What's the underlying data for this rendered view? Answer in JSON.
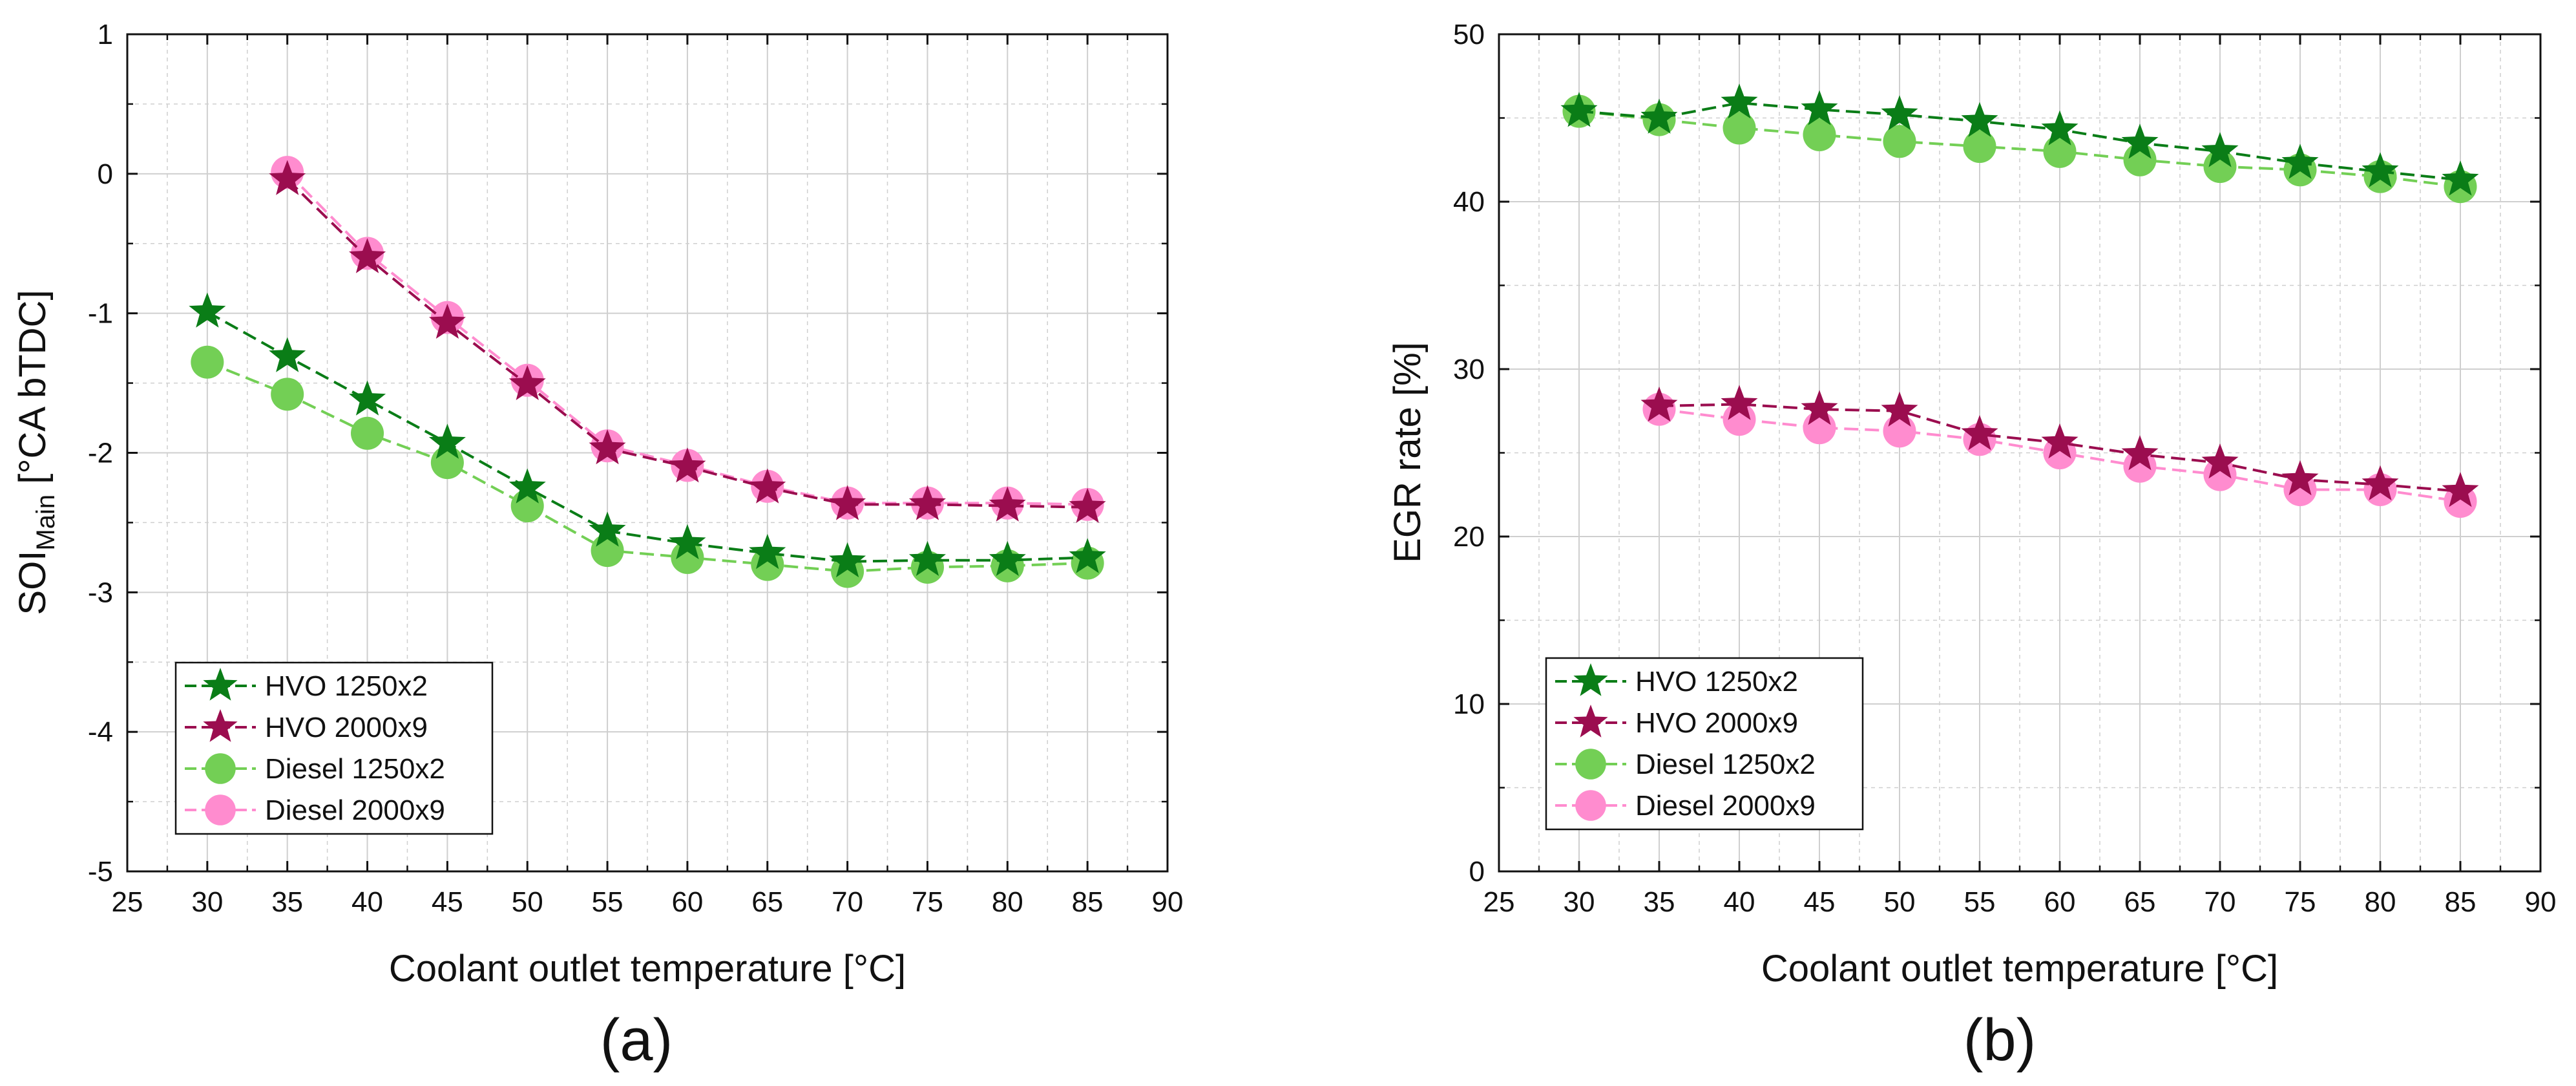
{
  "colors": {
    "hvo_1250x2": "#0a7d17",
    "hvo_2000x9": "#9b0d4f",
    "diesel_1250x2": "#73cf55",
    "diesel_2000x9": "#ff8ccf",
    "grid": "#cfcfcf"
  },
  "chart_data": [
    {
      "id": "a",
      "type": "line",
      "panel_label": "(a)",
      "xlabel": "Coolant outlet temperature [°C]",
      "ylabel_main": "SOI",
      "ylabel_sub": "Main",
      "ylabel_rest": " [°CA bTDC]",
      "xlim": [
        25,
        90
      ],
      "ylim": [
        -5,
        1
      ],
      "x_ticks": [
        25,
        30,
        35,
        40,
        45,
        50,
        55,
        60,
        65,
        70,
        75,
        80,
        85,
        90
      ],
      "y_ticks": [
        -5,
        -4,
        -3,
        -2,
        -1,
        0,
        1
      ],
      "grid": true,
      "legend_position": "bottom-left",
      "series": [
        {
          "key": "hvo_1250x2",
          "name": "HVO 1250x2",
          "marker": "star",
          "x": [
            30,
            35,
            40,
            45,
            50,
            55,
            60,
            65,
            70,
            75,
            80,
            85
          ],
          "y": [
            -0.99,
            -1.31,
            -1.62,
            -1.93,
            -2.25,
            -2.56,
            -2.65,
            -2.72,
            -2.78,
            -2.77,
            -2.77,
            -2.75
          ]
        },
        {
          "key": "hvo_2000x9",
          "name": "HVO 2000x9",
          "marker": "star",
          "x": [
            35,
            40,
            45,
            50,
            55,
            60,
            65,
            70,
            75,
            80,
            85
          ],
          "y": [
            -0.04,
            -0.6,
            -1.07,
            -1.51,
            -1.97,
            -2.1,
            -2.25,
            -2.37,
            -2.37,
            -2.38,
            -2.39
          ]
        },
        {
          "key": "diesel_1250x2",
          "name": "Diesel 1250x2",
          "marker": "circle",
          "x": [
            30,
            35,
            40,
            45,
            50,
            55,
            60,
            65,
            70,
            75,
            80,
            85
          ],
          "y": [
            -1.35,
            -1.58,
            -1.86,
            -2.07,
            -2.38,
            -2.7,
            -2.75,
            -2.8,
            -2.85,
            -2.82,
            -2.81,
            -2.79
          ]
        },
        {
          "key": "diesel_2000x9",
          "name": "Diesel 2000x9",
          "marker": "circle",
          "x": [
            35,
            40,
            45,
            50,
            55,
            60,
            65,
            70,
            75,
            80,
            85
          ],
          "y": [
            0.01,
            -0.57,
            -1.03,
            -1.48,
            -1.95,
            -2.09,
            -2.24,
            -2.36,
            -2.36,
            -2.36,
            -2.37
          ]
        }
      ]
    },
    {
      "id": "b",
      "type": "line",
      "panel_label": "(b)",
      "xlabel": "Coolant outlet temperature [°C]",
      "ylabel": "EGR rate [%]",
      "xlim": [
        25,
        90
      ],
      "ylim": [
        0,
        50
      ],
      "x_ticks": [
        25,
        30,
        35,
        40,
        45,
        50,
        55,
        60,
        65,
        70,
        75,
        80,
        85,
        90
      ],
      "y_ticks": [
        0,
        10,
        20,
        30,
        40,
        50
      ],
      "grid": true,
      "legend_position": "bottom-left",
      "series": [
        {
          "key": "hvo_1250x2",
          "name": "HVO 1250x2",
          "marker": "star",
          "x": [
            30,
            35,
            40,
            45,
            50,
            55,
            60,
            65,
            70,
            75,
            80,
            85
          ],
          "y": [
            45.4,
            45.0,
            45.9,
            45.5,
            45.2,
            44.8,
            44.3,
            43.5,
            43.0,
            42.3,
            41.8,
            41.3
          ]
        },
        {
          "key": "hvo_2000x9",
          "name": "HVO 2000x9",
          "marker": "star",
          "x": [
            35,
            40,
            45,
            50,
            55,
            60,
            65,
            70,
            75,
            80,
            85
          ],
          "y": [
            27.8,
            27.9,
            27.6,
            27.5,
            26.1,
            25.6,
            24.9,
            24.4,
            23.4,
            23.1,
            22.7
          ]
        },
        {
          "key": "diesel_1250x2",
          "name": "Diesel 1250x2",
          "marker": "circle",
          "x": [
            30,
            35,
            40,
            45,
            50,
            55,
            60,
            65,
            70,
            75,
            80,
            85
          ],
          "y": [
            45.4,
            44.9,
            44.4,
            44.0,
            43.6,
            43.3,
            43.0,
            42.5,
            42.1,
            41.9,
            41.5,
            40.9
          ]
        },
        {
          "key": "diesel_2000x9",
          "name": "Diesel 2000x9",
          "marker": "circle",
          "x": [
            35,
            40,
            45,
            50,
            55,
            60,
            65,
            70,
            75,
            80,
            85
          ],
          "y": [
            27.6,
            27.0,
            26.5,
            26.3,
            25.8,
            25.0,
            24.2,
            23.7,
            22.8,
            22.8,
            22.1
          ]
        }
      ]
    }
  ]
}
